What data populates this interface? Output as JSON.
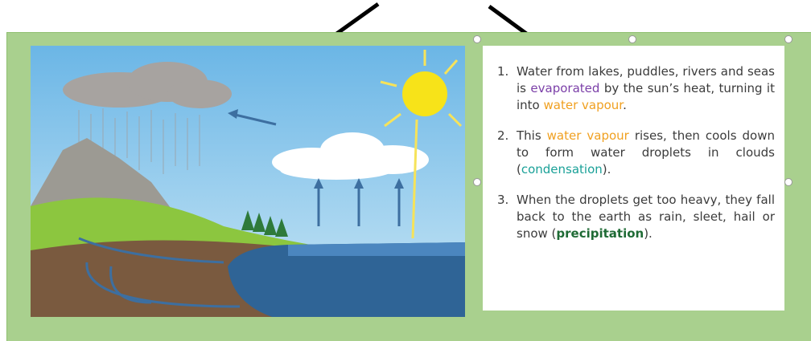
{
  "steps": [
    {
      "number": "1.",
      "segments": [
        "Water from lakes, puddles, rivers and seas is ",
        "evaporated",
        " by the sun’s heat, turning it into ",
        "water vapour",
        "."
      ]
    },
    {
      "number": "2.",
      "segments": [
        "This ",
        "water vapour",
        " rises, then cools down to form water droplets in clouds (",
        "condensation",
        ")."
      ]
    },
    {
      "number": "3.",
      "segments": [
        "When the droplets get too heavy, they fall back to the earth as rain, sleet, hail or snow (",
        "precipitation",
        ")."
      ]
    }
  ]
}
